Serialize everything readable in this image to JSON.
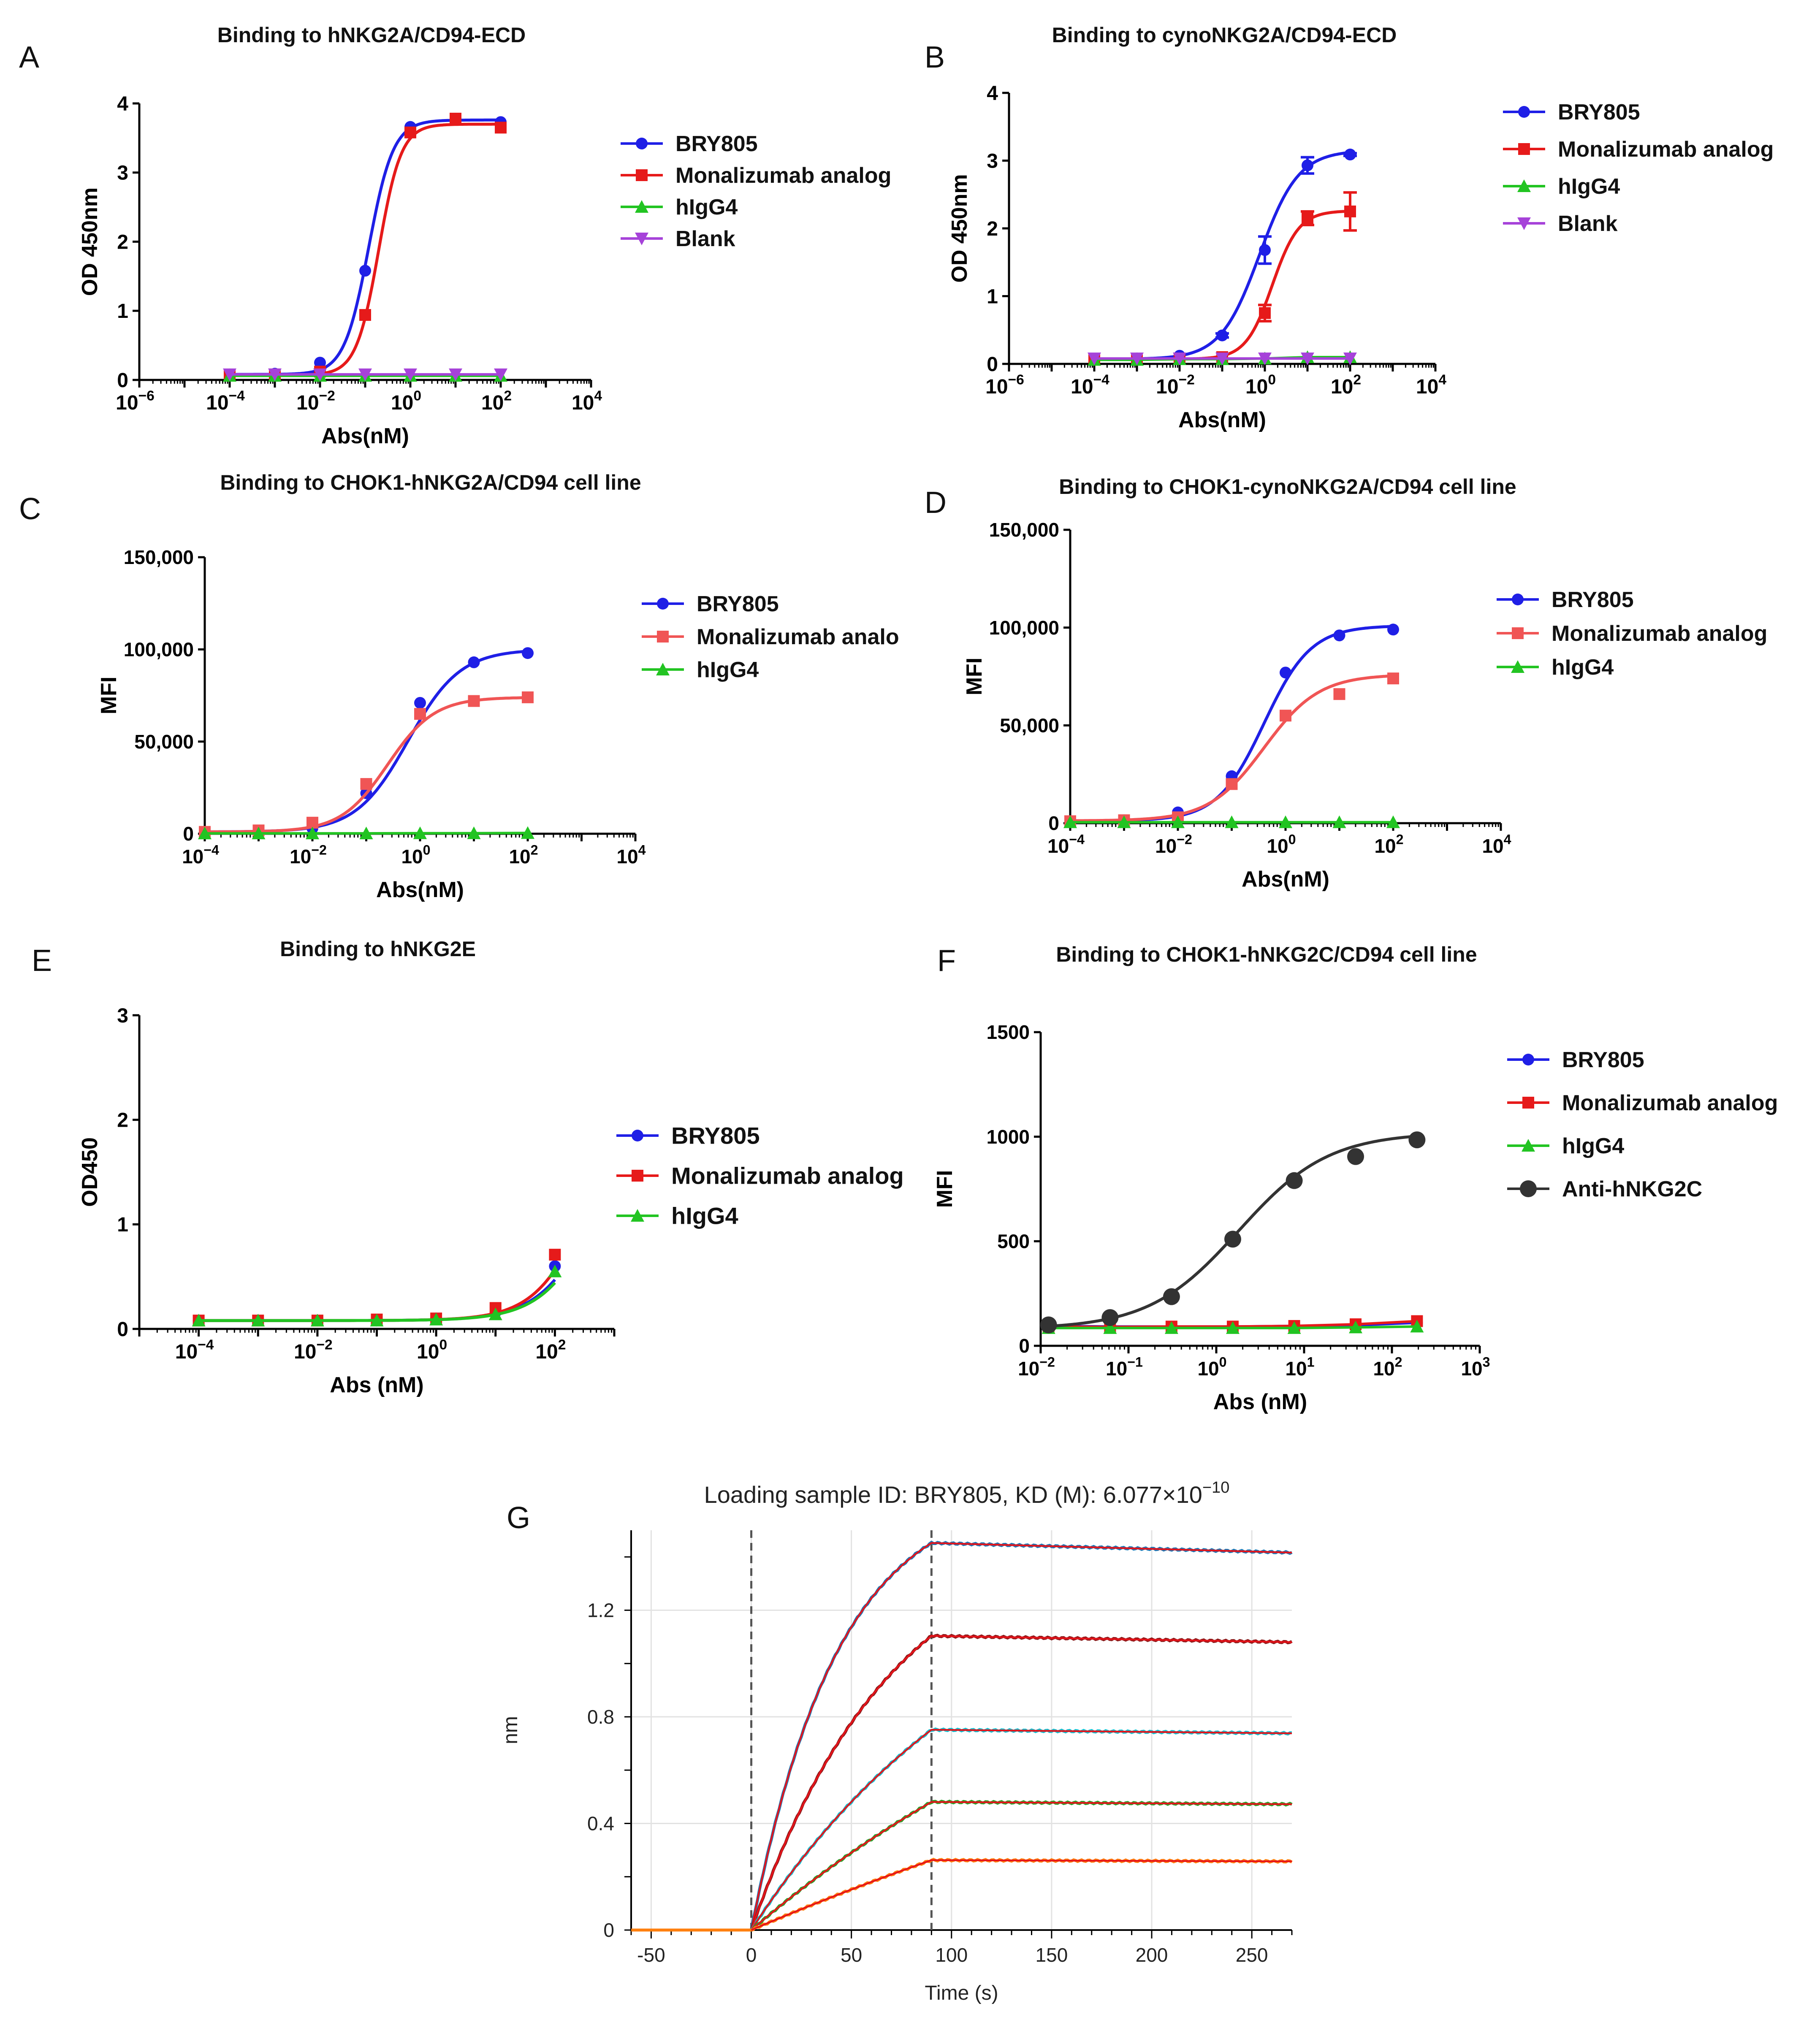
{
  "colors": {
    "blue": "#1f1fe6",
    "red": "#e61a1a",
    "light_red": "#f05555",
    "green": "#22c422",
    "purple": "#a642d9",
    "dark": "#333333"
  },
  "chart_data": [
    {
      "panel": "A",
      "type": "line",
      "x_scale": "log",
      "title": "Binding to hNKG2A/CD94-ECD",
      "xlabel": "Abs(nM)",
      "ylabel": "OD 450nm",
      "xlim_exp": [
        -6,
        4
      ],
      "ylim": [
        0,
        4
      ],
      "x_ticks": [
        {
          "exp": "−6",
          "val": -6
        },
        {
          "exp": "−4",
          "val": -4
        },
        {
          "exp": "−2",
          "val": -2
        },
        {
          "exp": "0",
          "val": 0
        },
        {
          "exp": "2",
          "val": 2
        },
        {
          "exp": "4",
          "val": 4
        }
      ],
      "y_ticks": [
        {
          "label": "0",
          "val": 0
        },
        {
          "label": "1",
          "val": 1
        },
        {
          "label": "2",
          "val": 2
        },
        {
          "label": "3",
          "val": 3
        },
        {
          "label": "4",
          "val": 4
        }
      ],
      "legend_position": "right",
      "series": [
        {
          "name": "BRY805",
          "color": "#1f1fe6",
          "marker": "circle",
          "x": [
            0.0001,
            0.001,
            0.01,
            0.1,
            1,
            10,
            100
          ],
          "y": [
            0.08,
            0.09,
            0.25,
            1.58,
            3.66,
            3.78,
            3.73
          ],
          "fit": {
            "bottom": 0.08,
            "top": 3.76,
            "ec50": 0.12,
            "hill": 1.6
          }
        },
        {
          "name": "Monalizumab analog",
          "color": "#e61a1a",
          "marker": "square",
          "x": [
            0.0001,
            0.001,
            0.01,
            0.1,
            1,
            10,
            100
          ],
          "y": [
            0.07,
            0.08,
            0.12,
            0.94,
            3.58,
            3.78,
            3.65
          ],
          "fit": {
            "bottom": 0.07,
            "top": 3.7,
            "ec50": 0.2,
            "hill": 1.75
          }
        },
        {
          "name": "hIgG4",
          "color": "#22c422",
          "marker": "triangle",
          "x": [
            0.0001,
            0.001,
            0.01,
            0.1,
            1,
            10,
            100
          ],
          "y": [
            0.06,
            0.06,
            0.06,
            0.06,
            0.06,
            0.06,
            0.06
          ],
          "fit": null
        },
        {
          "name": "Blank",
          "color": "#a642d9",
          "marker": "triangle-down",
          "x": [
            0.0001,
            0.001,
            0.01,
            0.1,
            1,
            10,
            100
          ],
          "y": [
            0.08,
            0.08,
            0.08,
            0.08,
            0.08,
            0.08,
            0.08
          ],
          "fit": null
        }
      ]
    },
    {
      "panel": "B",
      "type": "line",
      "x_scale": "log",
      "title": "Binding to cynoNKG2A/CD94-ECD",
      "xlabel": "Abs(nM)",
      "ylabel": "OD 450nm",
      "xlim_exp": [
        -6,
        4
      ],
      "ylim": [
        0,
        4
      ],
      "x_ticks": [
        {
          "exp": "−6",
          "val": -6
        },
        {
          "exp": "−4",
          "val": -4
        },
        {
          "exp": "−2",
          "val": -2
        },
        {
          "exp": "0",
          "val": 0
        },
        {
          "exp": "2",
          "val": 2
        },
        {
          "exp": "4",
          "val": 4
        }
      ],
      "y_ticks": [
        {
          "label": "0",
          "val": 0
        },
        {
          "label": "1",
          "val": 1
        },
        {
          "label": "2",
          "val": 2
        },
        {
          "label": "3",
          "val": 3
        },
        {
          "label": "4",
          "val": 4
        }
      ],
      "legend_position": "right",
      "series": [
        {
          "name": "BRY805",
          "color": "#1f1fe6",
          "marker": "circle",
          "x": [
            0.0001,
            0.001,
            0.01,
            0.1,
            1,
            10,
            100
          ],
          "y": [
            0.07,
            0.08,
            0.12,
            0.42,
            1.68,
            2.93,
            3.09
          ],
          "err": [
            0,
            0,
            0,
            0.03,
            0.2,
            0.12,
            0.02
          ],
          "fit": {
            "bottom": 0.07,
            "top": 3.15,
            "ec50": 0.75,
            "hill": 0.95
          }
        },
        {
          "name": "Monalizumab analog",
          "color": "#e61a1a",
          "marker": "square",
          "x": [
            0.0001,
            0.001,
            0.01,
            0.1,
            1,
            10,
            100
          ],
          "y": [
            0.07,
            0.07,
            0.08,
            0.1,
            0.75,
            2.15,
            2.25
          ],
          "err": [
            0,
            0,
            0,
            0,
            0.12,
            0.1,
            0.28
          ],
          "fit": {
            "bottom": 0.07,
            "top": 2.26,
            "ec50": 1.5,
            "hill": 1.4
          }
        },
        {
          "name": "hIgG4",
          "color": "#22c422",
          "marker": "triangle",
          "x": [
            0.0001,
            0.001,
            0.01,
            0.1,
            1,
            10,
            100
          ],
          "y": [
            0.06,
            0.06,
            0.07,
            0.07,
            0.08,
            0.1,
            0.1
          ],
          "fit": null
        },
        {
          "name": "Blank",
          "color": "#a642d9",
          "marker": "triangle-down",
          "x": [
            0.0001,
            0.001,
            0.01,
            0.1,
            1,
            10,
            100
          ],
          "y": [
            0.08,
            0.08,
            0.08,
            0.08,
            0.08,
            0.08,
            0.08
          ],
          "fit": null
        }
      ]
    },
    {
      "panel": "C",
      "type": "line",
      "x_scale": "log",
      "title": "Binding to CHOK1-hNKG2A/CD94 cell line",
      "xlabel": "Abs(nM)",
      "ylabel": "MFI",
      "xlim_exp": [
        -4,
        4
      ],
      "ylim": [
        0,
        150000
      ],
      "x_ticks": [
        {
          "exp": "−4",
          "val": -4
        },
        {
          "exp": "−2",
          "val": -2
        },
        {
          "exp": "0",
          "val": 0
        },
        {
          "exp": "2",
          "val": 2
        },
        {
          "exp": "4",
          "val": 4
        }
      ],
      "y_ticks": [
        {
          "label": "0",
          "val": 0
        },
        {
          "label": "50,000",
          "val": 50000
        },
        {
          "label": "100,000",
          "val": 100000
        },
        {
          "label": "150,000",
          "val": 150000
        }
      ],
      "legend_position": "right",
      "series": [
        {
          "name": "BRY805",
          "color": "#1f1fe6",
          "marker": "circle",
          "x": [
            0.0001,
            0.001,
            0.01,
            0.1,
            1,
            10,
            100
          ],
          "y": [
            1000,
            1500,
            3000,
            22000,
            71000,
            93000,
            98000
          ],
          "fit": {
            "bottom": 1000,
            "top": 100000,
            "ec50": 0.6,
            "hill": 0.9
          }
        },
        {
          "name": "Monalizumab analo",
          "color": "#f05555",
          "marker": "square",
          "x": [
            0.0001,
            0.001,
            0.01,
            0.1,
            1,
            10,
            100
          ],
          "y": [
            1000,
            1800,
            6000,
            27000,
            65000,
            72000,
            74000
          ],
          "fit": {
            "bottom": 1000,
            "top": 74000,
            "ec50": 0.25,
            "hill": 1.0
          }
        },
        {
          "name": "hIgG4",
          "color": "#22c422",
          "marker": "triangle",
          "x": [
            0.0001,
            0.001,
            0.01,
            0.1,
            1,
            10,
            100
          ],
          "y": [
            200,
            200,
            200,
            200,
            300,
            300,
            400
          ],
          "fit": null
        }
      ]
    },
    {
      "panel": "D",
      "type": "line",
      "x_scale": "log",
      "title": "Binding  to CHOK1-cynoNKG2A/CD94 cell line",
      "xlabel": "Abs(nM)",
      "ylabel": "MFI",
      "xlim_exp": [
        -4,
        4
      ],
      "ylim": [
        0,
        150000
      ],
      "x_ticks": [
        {
          "exp": "−4",
          "val": -4
        },
        {
          "exp": "−2",
          "val": -2
        },
        {
          "exp": "0",
          "val": 0
        },
        {
          "exp": "2",
          "val": 2
        },
        {
          "exp": "4",
          "val": 4
        }
      ],
      "y_ticks": [
        {
          "label": "0",
          "val": 0
        },
        {
          "label": "50,000",
          "val": 50000
        },
        {
          "label": "100,000",
          "val": 100000
        },
        {
          "label": "150,000",
          "val": 150000
        }
      ],
      "legend_position": "right",
      "series": [
        {
          "name": "BRY805",
          "color": "#1f1fe6",
          "marker": "circle",
          "x": [
            0.0001,
            0.001,
            0.01,
            0.1,
            1,
            10,
            100
          ],
          "y": [
            1000,
            1500,
            5500,
            24000,
            77000,
            96000,
            99000
          ],
          "fit": {
            "bottom": 1200,
            "top": 101000,
            "ec50": 0.4,
            "hill": 1.0
          }
        },
        {
          "name": "Monalizumab analog",
          "color": "#f05555",
          "marker": "square",
          "x": [
            0.0001,
            0.001,
            0.01,
            0.1,
            1,
            10,
            100
          ],
          "y": [
            1000,
            1500,
            3000,
            20000,
            55000,
            66000,
            74000
          ],
          "fit": {
            "bottom": 1200,
            "top": 76000,
            "ec50": 0.4,
            "hill": 0.85
          }
        },
        {
          "name": "hIgG4",
          "color": "#22c422",
          "marker": "triangle",
          "x": [
            0.0001,
            0.001,
            0.01,
            0.1,
            1,
            10,
            100
          ],
          "y": [
            500,
            500,
            500,
            500,
            500,
            500,
            500
          ],
          "fit": null
        }
      ]
    },
    {
      "panel": "E",
      "type": "line",
      "x_scale": "log",
      "title": "Binding to hNKG2E",
      "xlabel": "Abs (nM)",
      "ylabel": "OD450",
      "xlim_exp": [
        -5,
        3
      ],
      "ylim": [
        0,
        3
      ],
      "x_ticks": [
        {
          "exp": "−4",
          "val": -4
        },
        {
          "exp": "−2",
          "val": -2
        },
        {
          "exp": "0",
          "val": 0
        },
        {
          "exp": "2",
          "val": 2
        }
      ],
      "y_ticks": [
        {
          "label": "0",
          "val": 0
        },
        {
          "label": "1",
          "val": 1
        },
        {
          "label": "2",
          "val": 2
        },
        {
          "label": "3",
          "val": 3
        }
      ],
      "legend_position": "right",
      "series": [
        {
          "name": "BRY805",
          "color": "#1f1fe6",
          "marker": "circle",
          "x": [
            0.0001,
            0.001,
            0.01,
            0.1,
            1,
            10,
            100
          ],
          "y": [
            0.08,
            0.08,
            0.08,
            0.08,
            0.1,
            0.16,
            0.6
          ],
          "fit": {
            "bottom": 0.08,
            "top": 3.0,
            "ec50": 900,
            "hill": 0.85
          }
        },
        {
          "name": "Monalizumab analog",
          "color": "#e61a1a",
          "marker": "square",
          "x": [
            0.0001,
            0.001,
            0.01,
            0.1,
            1,
            10,
            100
          ],
          "y": [
            0.08,
            0.08,
            0.08,
            0.09,
            0.1,
            0.2,
            0.71
          ],
          "fit": {
            "bottom": 0.08,
            "top": 3.0,
            "ec50": 600,
            "hill": 0.9
          }
        },
        {
          "name": "hIgG4",
          "color": "#22c422",
          "marker": "triangle",
          "x": [
            0.0001,
            0.001,
            0.01,
            0.1,
            1,
            10,
            100
          ],
          "y": [
            0.08,
            0.08,
            0.08,
            0.08,
            0.09,
            0.14,
            0.55
          ],
          "fit": {
            "bottom": 0.08,
            "top": 3.0,
            "ec50": 1000,
            "hill": 0.85
          }
        }
      ]
    },
    {
      "panel": "F",
      "type": "line",
      "x_scale": "log",
      "title": "Binding to CHOK1-hNKG2C/CD94 cell line",
      "xlabel": "Abs (nM)",
      "ylabel": "MFI",
      "xlim_exp": [
        -2,
        3
      ],
      "ylim": [
        0,
        1500
      ],
      "x_ticks": [
        {
          "exp": "−2",
          "val": -2
        },
        {
          "exp": "−1",
          "val": -1
        },
        {
          "exp": "0",
          "val": 0
        },
        {
          "exp": "1",
          "val": 1
        },
        {
          "exp": "2",
          "val": 2
        },
        {
          "exp": "3",
          "val": 3
        }
      ],
      "y_ticks": [
        {
          "label": "0",
          "val": 0
        },
        {
          "label": "500",
          "val": 500
        },
        {
          "label": "1000",
          "val": 1000
        },
        {
          "label": "1500",
          "val": 1500
        }
      ],
      "legend_position": "right",
      "series": [
        {
          "name": "BRY805",
          "color": "#1f1fe6",
          "marker": "circle",
          "x": [
            0.0123,
            0.0617,
            0.309,
            1.54,
            7.72,
            38.6,
            193
          ],
          "y": [
            95,
            92,
            92,
            92,
            95,
            98,
            110
          ],
          "fit": null
        },
        {
          "name": "Monalizumab analog",
          "color": "#e61a1a",
          "marker": "square",
          "x": [
            0.0123,
            0.0617,
            0.309,
            1.54,
            7.72,
            38.6,
            193
          ],
          "y": [
            92,
            90,
            92,
            92,
            95,
            103,
            118
          ],
          "fit": null
        },
        {
          "name": "hIgG4",
          "color": "#22c422",
          "marker": "triangle",
          "x": [
            0.0123,
            0.0617,
            0.309,
            1.54,
            7.72,
            38.6,
            193
          ],
          "y": [
            85,
            85,
            85,
            85,
            85,
            88,
            92
          ],
          "fit": null
        },
        {
          "name": "Anti-hNKG2C",
          "color": "#333333",
          "marker": "circle-big",
          "x": [
            0.0123,
            0.0617,
            0.309,
            1.54,
            7.72,
            38.6,
            193
          ],
          "y": [
            100,
            135,
            235,
            510,
            790,
            905,
            985
          ],
          "fit": {
            "bottom": 80,
            "top": 1020,
            "ec50": 1.8,
            "hill": 0.85
          }
        }
      ]
    },
    {
      "panel": "G",
      "type": "line",
      "x_scale": "linear",
      "title_prefix": "Loading sample ID: BRY805, KD (M): 6.077×10",
      "title_exp": "−10",
      "xlabel": "Time (s)",
      "ylabel": "nm",
      "xlim": [
        -60,
        270
      ],
      "ylim": [
        0,
        1.5
      ],
      "x_ticks": [
        {
          "label": "-50",
          "val": -50
        },
        {
          "label": "0",
          "val": 0
        },
        {
          "label": "50",
          "val": 50
        },
        {
          "label": "100",
          "val": 100
        },
        {
          "label": "150",
          "val": 150
        },
        {
          "label": "200",
          "val": 200
        },
        {
          "label": "250",
          "val": 250
        }
      ],
      "y_ticks": [
        {
          "label": "0",
          "val": 0
        },
        {
          "label": "0.4",
          "val": 0.4
        },
        {
          "label": "0.8",
          "val": 0.8
        },
        {
          "label": "1.2",
          "val": 1.2
        }
      ],
      "association_end_s": 90,
      "traces": [
        {
          "color": "#1f77b4",
          "r_eq": 1.66,
          "k_obs": 0.0231,
          "decay": 0.00014
        },
        {
          "color": "#8b1a1a",
          "r_eq": 1.53,
          "k_obs": 0.0142,
          "decay": 0.00012
        },
        {
          "color": "#17becf",
          "r_eq": 1.49,
          "k_obs": 0.0078,
          "decay": 0.0001
        },
        {
          "color": "#2ca02c",
          "r_eq": 1.47,
          "k_obs": 0.0044,
          "decay": 0.0001
        },
        {
          "color": "#ff7f0e",
          "r_eq": 1.46,
          "k_obs": 0.0022,
          "decay": 0.0001
        }
      ]
    }
  ],
  "panels": [
    {
      "letter": "A"
    },
    {
      "letter": "B"
    },
    {
      "letter": "C"
    },
    {
      "letter": "D"
    },
    {
      "letter": "E"
    },
    {
      "letter": "F"
    },
    {
      "letter": "G"
    }
  ]
}
